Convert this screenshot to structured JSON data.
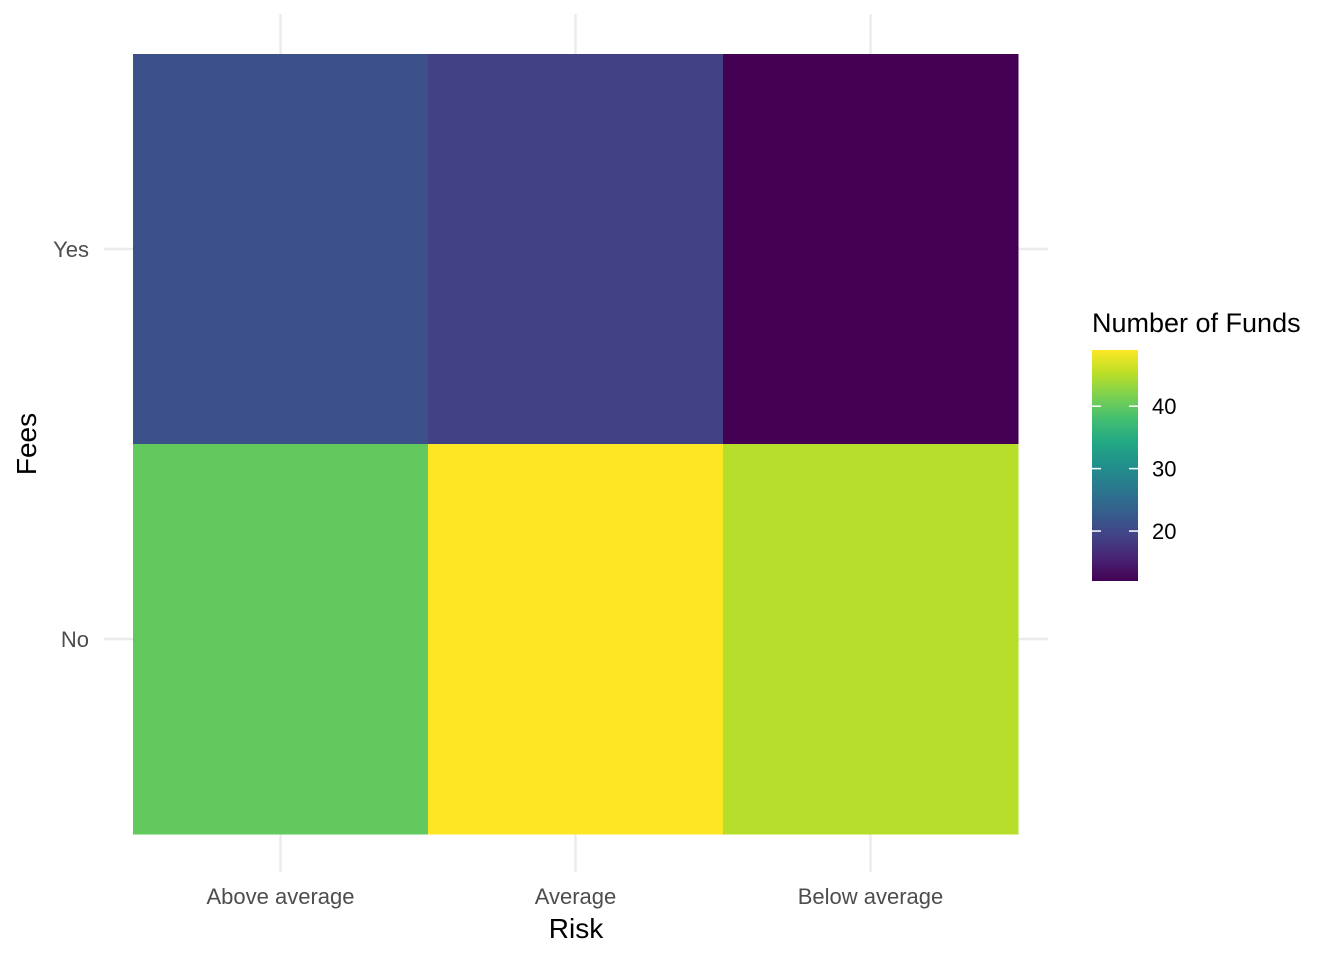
{
  "chart_data": {
    "type": "heatmap",
    "xlabel": "Risk",
    "ylabel": "Fees",
    "x_categories": [
      "Above average",
      "Average",
      "Below average"
    ],
    "y_categories": [
      "No",
      "Yes"
    ],
    "cells": [
      {
        "x": "Above average",
        "y": "Yes",
        "value": 21
      },
      {
        "x": "Average",
        "y": "Yes",
        "value": 19
      },
      {
        "x": "Below average",
        "y": "Yes",
        "value": 12
      },
      {
        "x": "Above average",
        "y": "No",
        "value": 40
      },
      {
        "x": "Average",
        "y": "No",
        "value": 49
      },
      {
        "x": "Below average",
        "y": "No",
        "value": 45
      }
    ],
    "colorscale": "viridis",
    "color_range": [
      12,
      49
    ],
    "legend": {
      "title": "Number of Funds",
      "ticks": [
        20,
        30,
        40
      ],
      "placement": "right"
    },
    "grid": true
  }
}
